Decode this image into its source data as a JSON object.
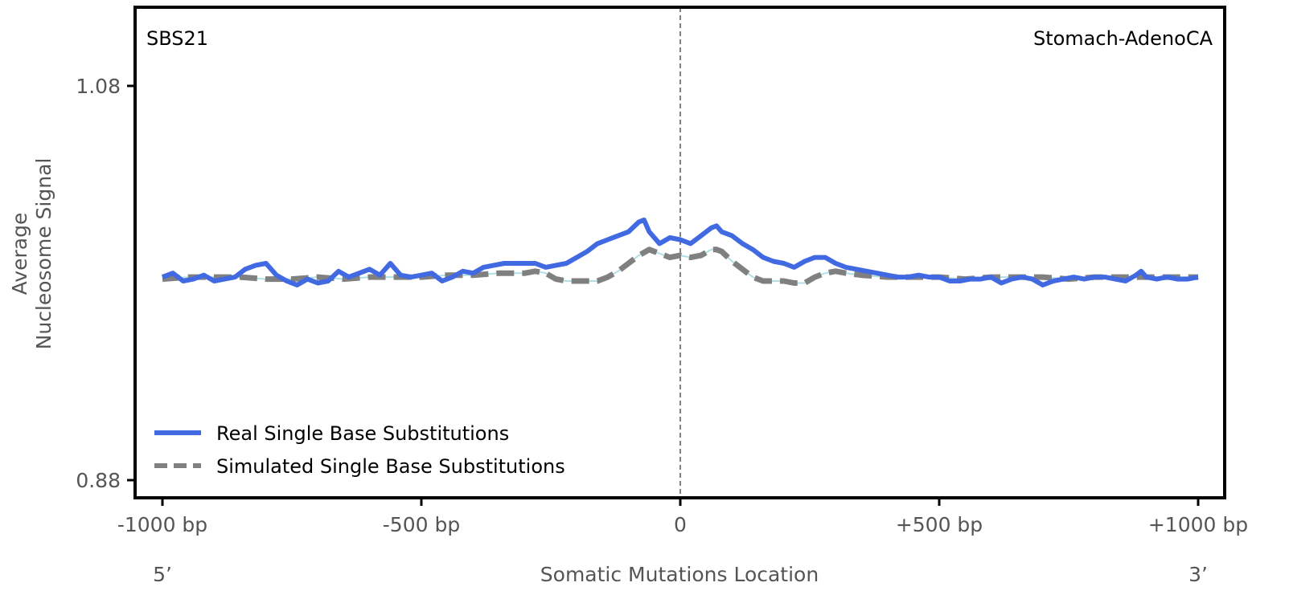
{
  "chart_data": {
    "type": "line",
    "signature_label": "SBS21",
    "cancer_type_label": "Stomach-AdenoCA",
    "ylabel_lines": [
      "Average",
      "Nucleosome Signal"
    ],
    "xlabel": "Somatic Mutations Location",
    "x_end_labels": {
      "left": "5’",
      "right": "3’"
    },
    "xlim": [
      -1000,
      1000
    ],
    "ylim": [
      0.87,
      1.12
    ],
    "x_ticks": [
      {
        "value": -1000,
        "label": "-1000 bp"
      },
      {
        "value": -500,
        "label": "-500 bp"
      },
      {
        "value": 0,
        "label": "0"
      },
      {
        "value": 500,
        "label": "+500 bp"
      },
      {
        "value": 1000,
        "label": "+1000 bp"
      }
    ],
    "y_ticks": [
      {
        "value": 0.88,
        "label": "0.88"
      },
      {
        "value": 1.08,
        "label": "1.08"
      }
    ],
    "center_line": {
      "x": 0,
      "style": "dashed",
      "color": "#808080"
    },
    "legend": {
      "placement": "bottom-left"
    },
    "grid": false,
    "series": [
      {
        "name": "Real Single Base Substitutions",
        "color": "#4169e1",
        "style": "solid",
        "x": [
          -1000,
          -980,
          -960,
          -940,
          -920,
          -900,
          -880,
          -860,
          -840,
          -820,
          -800,
          -780,
          -760,
          -740,
          -720,
          -700,
          -680,
          -660,
          -640,
          -620,
          -600,
          -580,
          -560,
          -540,
          -520,
          -500,
          -480,
          -460,
          -440,
          -420,
          -400,
          -380,
          -360,
          -340,
          -320,
          -300,
          -280,
          -260,
          -240,
          -220,
          -200,
          -180,
          -160,
          -140,
          -120,
          -100,
          -80,
          -70,
          -60,
          -40,
          -20,
          0,
          20,
          40,
          60,
          70,
          80,
          100,
          120,
          140,
          160,
          180,
          200,
          220,
          240,
          260,
          280,
          300,
          320,
          340,
          360,
          380,
          400,
          420,
          440,
          460,
          480,
          500,
          520,
          540,
          560,
          580,
          600,
          620,
          640,
          660,
          680,
          700,
          720,
          740,
          760,
          780,
          800,
          820,
          840,
          860,
          880,
          890,
          900,
          920,
          940,
          960,
          980,
          1000
        ],
        "y": [
          0.983,
          0.985,
          0.981,
          0.982,
          0.984,
          0.981,
          0.982,
          0.983,
          0.987,
          0.989,
          0.99,
          0.984,
          0.981,
          0.979,
          0.982,
          0.98,
          0.981,
          0.986,
          0.983,
          0.985,
          0.987,
          0.984,
          0.99,
          0.984,
          0.983,
          0.984,
          0.985,
          0.981,
          0.983,
          0.986,
          0.985,
          0.988,
          0.989,
          0.99,
          0.99,
          0.99,
          0.99,
          0.988,
          0.989,
          0.99,
          0.993,
          0.996,
          1.0,
          1.002,
          1.004,
          1.006,
          1.011,
          1.012,
          1.006,
          1.0,
          1.003,
          1.002,
          1.0,
          1.004,
          1.008,
          1.009,
          1.006,
          1.004,
          1.0,
          0.997,
          0.993,
          0.991,
          0.99,
          0.988,
          0.991,
          0.993,
          0.993,
          0.99,
          0.988,
          0.987,
          0.986,
          0.985,
          0.984,
          0.983,
          0.983,
          0.984,
          0.983,
          0.983,
          0.981,
          0.981,
          0.982,
          0.982,
          0.983,
          0.98,
          0.982,
          0.983,
          0.982,
          0.979,
          0.981,
          0.982,
          0.983,
          0.982,
          0.983,
          0.983,
          0.982,
          0.981,
          0.984,
          0.986,
          0.983,
          0.982,
          0.983,
          0.982,
          0.982,
          0.983
        ]
      },
      {
        "name": "Simulated Single Base Substitutions",
        "color": "#808080",
        "style": "dashed",
        "x": [
          -1000,
          -950,
          -900,
          -850,
          -800,
          -750,
          -700,
          -650,
          -600,
          -550,
          -500,
          -450,
          -400,
          -350,
          -300,
          -280,
          -260,
          -240,
          -220,
          -200,
          -180,
          -160,
          -140,
          -120,
          -100,
          -80,
          -60,
          -40,
          -20,
          0,
          20,
          40,
          60,
          70,
          80,
          100,
          120,
          140,
          160,
          180,
          200,
          220,
          240,
          260,
          280,
          300,
          320,
          350,
          400,
          450,
          500,
          550,
          600,
          650,
          700,
          750,
          800,
          850,
          900,
          950,
          1000
        ],
        "y": [
          0.982,
          0.983,
          0.983,
          0.983,
          0.982,
          0.982,
          0.983,
          0.982,
          0.983,
          0.983,
          0.983,
          0.984,
          0.984,
          0.985,
          0.985,
          0.986,
          0.985,
          0.982,
          0.981,
          0.981,
          0.981,
          0.981,
          0.983,
          0.986,
          0.99,
          0.994,
          0.997,
          0.995,
          0.993,
          0.994,
          0.993,
          0.994,
          0.997,
          0.997,
          0.996,
          0.991,
          0.987,
          0.983,
          0.981,
          0.981,
          0.981,
          0.98,
          0.98,
          0.983,
          0.985,
          0.986,
          0.985,
          0.984,
          0.983,
          0.983,
          0.983,
          0.982,
          0.983,
          0.983,
          0.983,
          0.982,
          0.983,
          0.983,
          0.983,
          0.983,
          0.983
        ]
      }
    ]
  }
}
